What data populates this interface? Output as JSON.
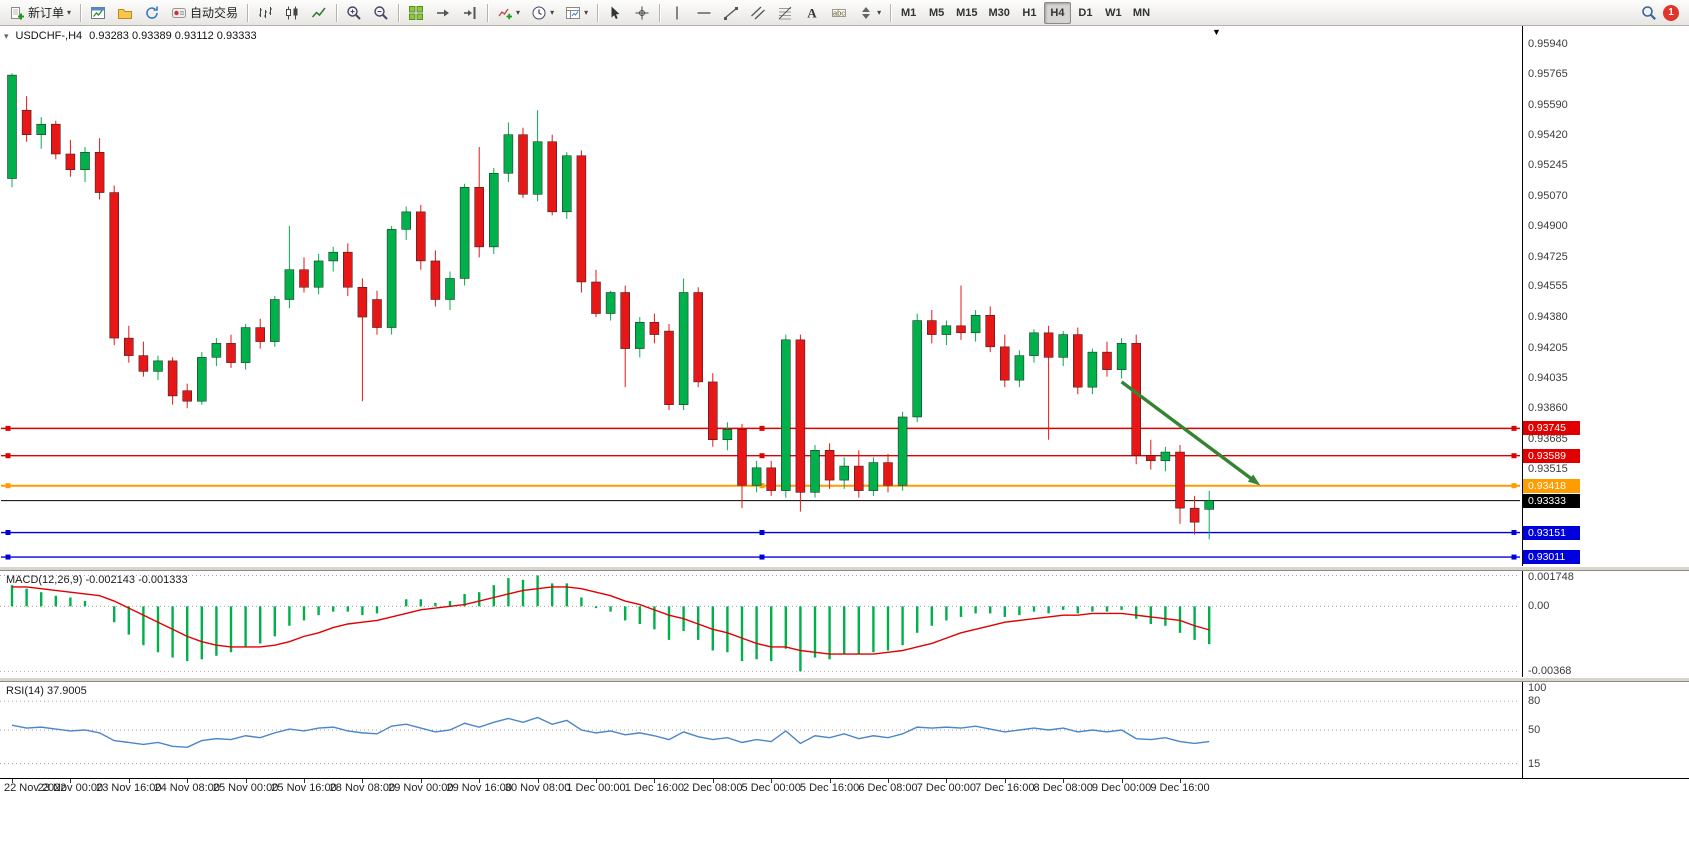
{
  "toolbar": {
    "new_order_label": "新订单",
    "autotrading_label": "自动交易",
    "timeframes": [
      "M1",
      "M5",
      "M15",
      "M30",
      "H1",
      "H4",
      "D1",
      "W1",
      "MN"
    ],
    "active_timeframe": "H4",
    "notification_count": "1"
  },
  "chart": {
    "symbol_label": "USDCHF-,H4",
    "ohlc_text": "0.93283 0.93389 0.93112 0.93333"
  },
  "chart_data": [
    {
      "type": "candlestick",
      "title": "USDCHF H4",
      "open": 0.93283,
      "high": 0.93389,
      "low": 0.93112,
      "close": 0.93333,
      "up_color": "#00b04a",
      "down_color": "#e81717",
      "ylim": [
        0.9296,
        0.9604
      ],
      "y_ticks": [
        "0.95940",
        "0.95765",
        "0.95590",
        "0.95420",
        "0.95245",
        "0.95070",
        "0.94900",
        "0.94725",
        "0.94555",
        "0.94380",
        "0.94205",
        "0.94035",
        "0.93860",
        "0.93685",
        "0.93515"
      ],
      "hlines": [
        {
          "price": "0.93745",
          "color": "#e00000",
          "width": 1.4,
          "handles": true
        },
        {
          "price": "0.93589",
          "color": "#e00000",
          "width": 1.4,
          "handles": true
        },
        {
          "price": "0.93418",
          "color": "#ff9c00",
          "width": 2,
          "handles": true
        },
        {
          "price": "0.93333",
          "color": "#000000",
          "width": 1,
          "handles": false
        },
        {
          "price": "0.93151",
          "color": "#0000dd",
          "width": 1.4,
          "handles": true
        },
        {
          "price": "0.93011",
          "color": "#0000dd",
          "width": 1.4,
          "handles": true
        }
      ],
      "x_labels": [
        "22 Nov 2022",
        "23 Nov 00:00",
        "23 Nov 16:00",
        "24 Nov 08:00",
        "25 Nov 00:00",
        "25 Nov 16:00",
        "28 Nov 08:00",
        "29 Nov 00:00",
        "29 Nov 16:00",
        "30 Nov 08:00",
        "1 Dec 00:00",
        "1 Dec 16:00",
        "2 Dec 08:00",
        "5 Dec 00:00",
        "5 Dec 16:00",
        "6 Dec 08:00",
        "7 Dec 00:00",
        "7 Dec 16:00",
        "8 Dec 08:00",
        "9 Dec 00:00",
        "9 Dec 16:00"
      ],
      "label_every": 4,
      "candles": [
        [
          0.9517,
          0.9577,
          0.9512,
          0.9576
        ],
        [
          0.9556,
          0.9564,
          0.9538,
          0.9542
        ],
        [
          0.9542,
          0.9552,
          0.9534,
          0.9548
        ],
        [
          0.9548,
          0.955,
          0.9528,
          0.9531
        ],
        [
          0.9531,
          0.9539,
          0.9518,
          0.9522
        ],
        [
          0.9522,
          0.9535,
          0.9515,
          0.9532
        ],
        [
          0.9532,
          0.954,
          0.9505,
          0.9509
        ],
        [
          0.9509,
          0.9513,
          0.9422,
          0.9426
        ],
        [
          0.9426,
          0.9433,
          0.9412,
          0.9416
        ],
        [
          0.9416,
          0.9424,
          0.9404,
          0.9407
        ],
        [
          0.9407,
          0.9416,
          0.9402,
          0.9413
        ],
        [
          0.9413,
          0.9415,
          0.9388,
          0.9393
        ],
        [
          0.9396,
          0.94,
          0.9386,
          0.939
        ],
        [
          0.939,
          0.9418,
          0.9388,
          0.9415
        ],
        [
          0.9415,
          0.9426,
          0.941,
          0.9423
        ],
        [
          0.9423,
          0.9428,
          0.9409,
          0.9412
        ],
        [
          0.9412,
          0.9434,
          0.9408,
          0.9432
        ],
        [
          0.9432,
          0.9437,
          0.942,
          0.9424
        ],
        [
          0.9424,
          0.945,
          0.9421,
          0.9448
        ],
        [
          0.9448,
          0.949,
          0.9443,
          0.9465
        ],
        [
          0.9465,
          0.9472,
          0.9452,
          0.9455
        ],
        [
          0.9455,
          0.9474,
          0.9451,
          0.947
        ],
        [
          0.947,
          0.9478,
          0.9464,
          0.9475
        ],
        [
          0.9475,
          0.948,
          0.945,
          0.9455
        ],
        [
          0.9455,
          0.946,
          0.939,
          0.9438
        ],
        [
          0.9448,
          0.9453,
          0.9428,
          0.9432
        ],
        [
          0.9432,
          0.949,
          0.9428,
          0.9488
        ],
        [
          0.9488,
          0.9501,
          0.9482,
          0.9498
        ],
        [
          0.9498,
          0.9502,
          0.9465,
          0.947
        ],
        [
          0.947,
          0.9476,
          0.9444,
          0.9448
        ],
        [
          0.9448,
          0.9464,
          0.9442,
          0.946
        ],
        [
          0.946,
          0.9514,
          0.9456,
          0.9512
        ],
        [
          0.9512,
          0.9535,
          0.9472,
          0.9478
        ],
        [
          0.9478,
          0.9523,
          0.9474,
          0.952
        ],
        [
          0.952,
          0.9549,
          0.9515,
          0.9542
        ],
        [
          0.9542,
          0.9546,
          0.9506,
          0.9508
        ],
        [
          0.9508,
          0.9556,
          0.9504,
          0.9538
        ],
        [
          0.9538,
          0.9542,
          0.9496,
          0.9498
        ],
        [
          0.9498,
          0.9532,
          0.9494,
          0.953
        ],
        [
          0.953,
          0.9533,
          0.9452,
          0.9458
        ],
        [
          0.9458,
          0.9465,
          0.9438,
          0.944
        ],
        [
          0.944,
          0.9453,
          0.9436,
          0.9452
        ],
        [
          0.9452,
          0.9456,
          0.9398,
          0.942
        ],
        [
          0.942,
          0.9438,
          0.9415,
          0.9435
        ],
        [
          0.9435,
          0.944,
          0.9423,
          0.9428
        ],
        [
          0.943,
          0.9434,
          0.9385,
          0.9388
        ],
        [
          0.9388,
          0.946,
          0.9385,
          0.9452
        ],
        [
          0.9452,
          0.9455,
          0.9398,
          0.9401
        ],
        [
          0.9401,
          0.9406,
          0.9364,
          0.9368
        ],
        [
          0.9368,
          0.9378,
          0.9362,
          0.9374
        ],
        [
          0.9374,
          0.9377,
          0.9329,
          0.9342
        ],
        [
          0.9342,
          0.9356,
          0.9338,
          0.9352
        ],
        [
          0.9352,
          0.9356,
          0.9336,
          0.9339
        ],
        [
          0.9339,
          0.9428,
          0.9335,
          0.9425
        ],
        [
          0.9425,
          0.9428,
          0.9327,
          0.9338
        ],
        [
          0.9338,
          0.9365,
          0.9335,
          0.9362
        ],
        [
          0.9362,
          0.9366,
          0.934,
          0.9345
        ],
        [
          0.9345,
          0.9358,
          0.934,
          0.9353
        ],
        [
          0.9353,
          0.9362,
          0.9335,
          0.9339
        ],
        [
          0.9339,
          0.9358,
          0.9336,
          0.9355
        ],
        [
          0.9355,
          0.936,
          0.9338,
          0.9342
        ],
        [
          0.9342,
          0.9384,
          0.9339,
          0.9381
        ],
        [
          0.9381,
          0.944,
          0.9378,
          0.9436
        ],
        [
          0.9436,
          0.9442,
          0.9423,
          0.9428
        ],
        [
          0.9428,
          0.9436,
          0.9422,
          0.9433
        ],
        [
          0.9433,
          0.9456,
          0.9425,
          0.9429
        ],
        [
          0.9429,
          0.9442,
          0.9424,
          0.9439
        ],
        [
          0.9439,
          0.9444,
          0.9418,
          0.9421
        ],
        [
          0.9421,
          0.9428,
          0.9398,
          0.9402
        ],
        [
          0.9402,
          0.9419,
          0.9398,
          0.9416
        ],
        [
          0.9416,
          0.9431,
          0.9412,
          0.9429
        ],
        [
          0.9429,
          0.9433,
          0.9368,
          0.9415
        ],
        [
          0.9415,
          0.943,
          0.941,
          0.9428
        ],
        [
          0.9428,
          0.9432,
          0.9394,
          0.9398
        ],
        [
          0.9398,
          0.942,
          0.9394,
          0.9418
        ],
        [
          0.9418,
          0.9424,
          0.9404,
          0.9408
        ],
        [
          0.9408,
          0.9426,
          0.9403,
          0.9423
        ],
        [
          0.9423,
          0.9428,
          0.9354,
          0.9359
        ],
        [
          0.9359,
          0.9368,
          0.9351,
          0.9356
        ],
        [
          0.9356,
          0.9364,
          0.935,
          0.9361
        ],
        [
          0.9361,
          0.9365,
          0.932,
          0.9329
        ],
        [
          0.9329,
          0.9336,
          0.9314,
          0.9321
        ],
        [
          0.93283,
          0.93389,
          0.93112,
          0.93333
        ]
      ],
      "trend_arrow": {
        "from_bar": 76,
        "from_price": 0.9401,
        "to_bar": 85.5,
        "to_price": 0.9342,
        "color": "#338533"
      }
    },
    {
      "type": "bar",
      "name": "MACD",
      "label": "MACD(12,26,9) -0.002143 -0.001333",
      "histogram_color": "#00b04a",
      "signal_color": "#e00000",
      "ylim": [
        -0.004,
        0.002
      ],
      "y_ticks": [
        "0.001748",
        "0.00",
        "-0.00368"
      ],
      "values": [
        0.0012,
        0.001,
        0.0008,
        0.0006,
        0.0005,
        0.0003,
        0.0,
        -0.0009,
        -0.0016,
        -0.0022,
        -0.0026,
        -0.0029,
        -0.0031,
        -0.003,
        -0.0028,
        -0.0026,
        -0.0023,
        -0.0021,
        -0.0017,
        -0.0011,
        -0.0008,
        -0.0005,
        -0.0003,
        -0.0003,
        -0.0005,
        -0.0004,
        0.0,
        0.0004,
        0.0004,
        0.0002,
        0.0003,
        0.0007,
        0.0008,
        0.0012,
        0.0016,
        0.0015,
        0.001748,
        0.0013,
        0.0013,
        0.0005,
        -0.0001,
        -0.0003,
        -0.0008,
        -0.001,
        -0.0013,
        -0.0019,
        -0.0014,
        -0.0019,
        -0.0025,
        -0.0026,
        -0.0031,
        -0.003,
        -0.0031,
        -0.0024,
        -0.00368,
        -0.0029,
        -0.003,
        -0.0027,
        -0.0027,
        -0.0026,
        -0.0025,
        -0.0022,
        -0.0015,
        -0.0011,
        -0.0008,
        -0.0006,
        -0.0004,
        -0.0004,
        -0.0006,
        -0.0005,
        -0.0003,
        -0.0004,
        -0.0002,
        -0.0004,
        -0.0003,
        -0.0003,
        -0.0002,
        -0.0007,
        -0.001,
        -0.0011,
        -0.0015,
        -0.0019,
        -0.002143
      ],
      "signal": [
        0.0011,
        0.0011,
        0.001,
        0.0009,
        0.0008,
        0.0007,
        0.0006,
        0.0003,
        -0.0001,
        -0.0005,
        -0.0009,
        -0.0013,
        -0.0017,
        -0.002,
        -0.0022,
        -0.0023,
        -0.0023,
        -0.0023,
        -0.0022,
        -0.002,
        -0.0017,
        -0.0015,
        -0.0012,
        -0.001,
        -0.0009,
        -0.0008,
        -0.0006,
        -0.0004,
        -0.0002,
        -0.0001,
        0.0,
        0.0001,
        0.0003,
        0.0005,
        0.0007,
        0.0009,
        0.001,
        0.0011,
        0.0011,
        0.001,
        0.0008,
        0.0006,
        0.0003,
        0.0001,
        -0.0002,
        -0.0005,
        -0.0007,
        -0.001,
        -0.0013,
        -0.0015,
        -0.0018,
        -0.0021,
        -0.0023,
        -0.0023,
        -0.0025,
        -0.0026,
        -0.0027,
        -0.0027,
        -0.0027,
        -0.0027,
        -0.0026,
        -0.0025,
        -0.0023,
        -0.0021,
        -0.0018,
        -0.0015,
        -0.0013,
        -0.0011,
        -0.0009,
        -0.0008,
        -0.0007,
        -0.0006,
        -0.0005,
        -0.0005,
        -0.0004,
        -0.0004,
        -0.0004,
        -0.0005,
        -0.0006,
        -0.0007,
        -0.0008,
        -0.0011,
        -0.001333
      ]
    },
    {
      "type": "line",
      "name": "RSI",
      "label": "RSI(14) 37.9005",
      "line_color": "#4a86c8",
      "ylim": [
        0,
        100
      ],
      "levels": [
        80,
        50,
        15
      ],
      "y_ticks": [
        "100",
        "80",
        "50",
        "15"
      ],
      "values": [
        55,
        52,
        53,
        51,
        49,
        50,
        47,
        39,
        37,
        35,
        37,
        33,
        32,
        39,
        41,
        40,
        44,
        42,
        47,
        51,
        49,
        52,
        53,
        49,
        47,
        46,
        54,
        56,
        52,
        48,
        50,
        57,
        53,
        58,
        62,
        58,
        63,
        56,
        60,
        50,
        47,
        49,
        45,
        47,
        44,
        40,
        48,
        43,
        40,
        42,
        37,
        40,
        38,
        49,
        36,
        44,
        42,
        46,
        41,
        44,
        42,
        46,
        53,
        52,
        53,
        52,
        54,
        51,
        48,
        50,
        52,
        50,
        52,
        48,
        50,
        48,
        50,
        41,
        40,
        42,
        38,
        36,
        37.9
      ]
    }
  ]
}
